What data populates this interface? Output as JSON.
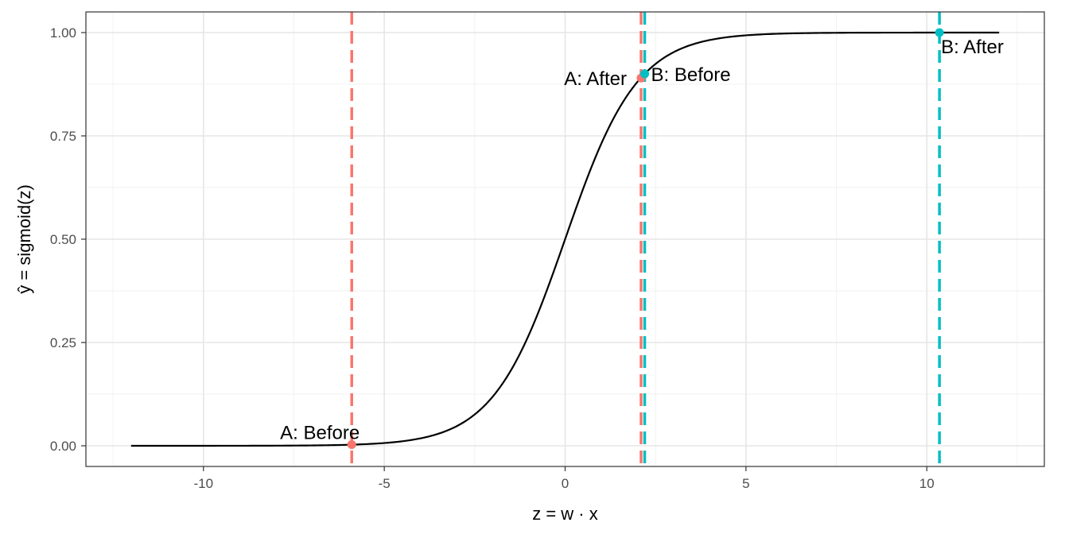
{
  "chart_data": {
    "type": "line",
    "title": "",
    "xlabel": "z = w · x",
    "ylabel": "ŷ = sigmoid(z)",
    "xlim": [
      -13.25,
      13.25
    ],
    "ylim": [
      -0.05,
      1.05
    ],
    "x_ticks": [
      -10,
      -5,
      0,
      5,
      10
    ],
    "x_tick_labels": [
      "-10",
      "-5",
      "0",
      "5",
      "10"
    ],
    "y_ticks": [
      0,
      0.25,
      0.5,
      0.75,
      1
    ],
    "y_tick_labels": [
      "0.00",
      "0.25",
      "0.50",
      "0.75",
      "1.00"
    ],
    "grid": true,
    "legend": "none",
    "curve": {
      "function": "sigmoid",
      "x_range": [
        -12,
        12
      ],
      "color": "#000000"
    },
    "vertical_lines": [
      {
        "x": -5.9,
        "color": "#F8766D"
      },
      {
        "x": 2.1,
        "color": "#F8766D"
      },
      {
        "x": 2.2,
        "color": "#00BFC4"
      },
      {
        "x": 10.35,
        "color": "#00BFC4"
      }
    ],
    "points": [
      {
        "label": "A: Before",
        "x": -5.9,
        "y": 0.003,
        "color": "#F8766D",
        "label_anchor": "end"
      },
      {
        "label": "A: After",
        "x": 2.1,
        "y": 0.89,
        "color": "#F8766D",
        "label_anchor": "end"
      },
      {
        "label": "B: Before",
        "x": 2.2,
        "y": 0.9,
        "color": "#00BFC4",
        "label_anchor": "start"
      },
      {
        "label": "B: After",
        "x": 10.35,
        "y": 1.0,
        "color": "#00BFC4",
        "label_anchor": "start"
      }
    ]
  }
}
